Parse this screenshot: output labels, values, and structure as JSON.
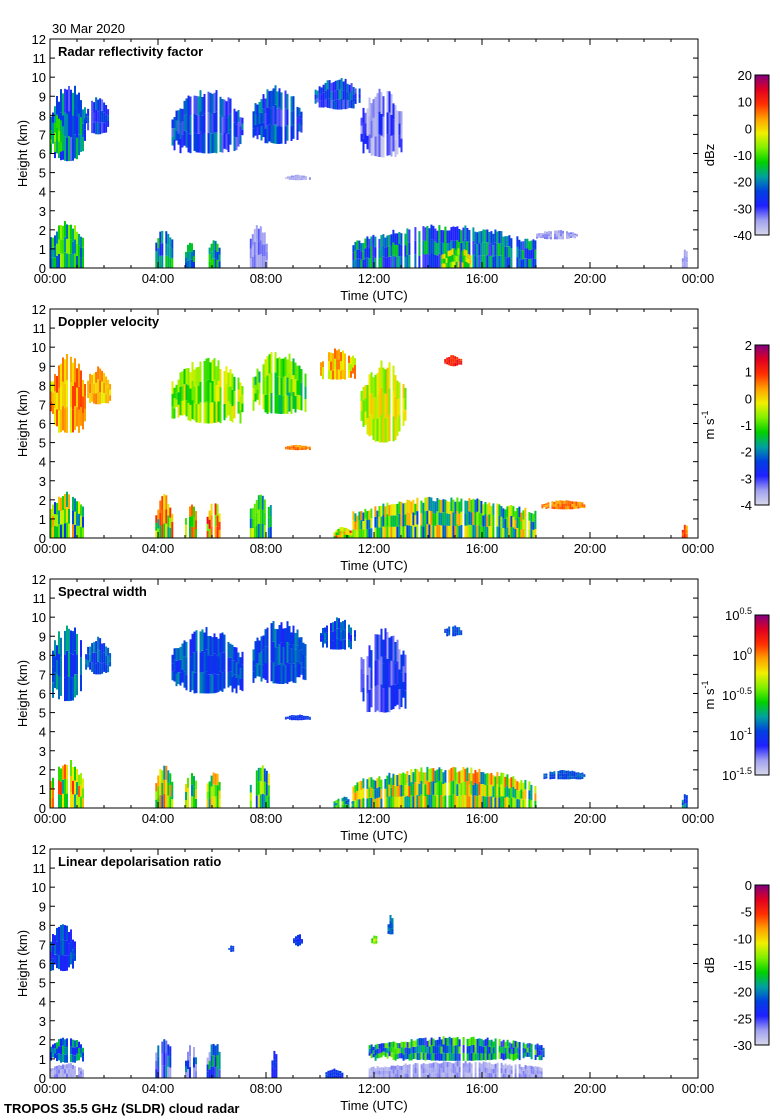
{
  "date": "30 Mar 2020",
  "footer": "TROPOS 35.5 GHz (SLDR) cloud radar",
  "colormap": [
    "#d8d8ea",
    "#a0a0f0",
    "#2020ff",
    "#0040e0",
    "#00a0a0",
    "#00d000",
    "#80f000",
    "#f0f000",
    "#ffa000",
    "#ff3000",
    "#e00020",
    "#800080"
  ],
  "chart_data": [
    {
      "type": "heatmap",
      "title": "Radar reflectivity factor",
      "xlabel": "Time (UTC)",
      "ylabel": "Height (km)",
      "xticks": [
        "00:00",
        "04:00",
        "08:00",
        "12:00",
        "16:00",
        "20:00",
        "00:00"
      ],
      "yticks": [
        "0",
        "1",
        "2",
        "3",
        "4",
        "5",
        "6",
        "7",
        "8",
        "9",
        "10",
        "11",
        "12"
      ],
      "xlim": [
        0,
        24
      ],
      "ylim": [
        0,
        12
      ],
      "colorbar": {
        "unit": "dBz",
        "unit_exp": "",
        "labels": [
          {
            "b": "20",
            "e": ""
          },
          {
            "b": "10",
            "e": ""
          },
          {
            "b": "0",
            "e": ""
          },
          {
            "b": "-10",
            "e": ""
          },
          {
            "b": "-20",
            "e": ""
          },
          {
            "b": "-30",
            "e": ""
          },
          {
            "b": "-40",
            "e": ""
          }
        ],
        "range": [
          -40,
          20
        ]
      },
      "echoes": [
        [
          0,
          1.3,
          5.6,
          9.8,
          0.28,
          0.15
        ],
        [
          0,
          0.5,
          6,
          8,
          0.45,
          0.1
        ],
        [
          1.3,
          2.2,
          7,
          9,
          0.22,
          0.1
        ],
        [
          4.5,
          7.1,
          6,
          9.5,
          0.24,
          0.12
        ],
        [
          7.5,
          9.3,
          6.5,
          9.6,
          0.25,
          0.12
        ],
        [
          9.8,
          11.5,
          8.3,
          10,
          0.24,
          0.12
        ],
        [
          11.5,
          13,
          5.8,
          9.5,
          0.12,
          0.1
        ],
        [
          8.7,
          9.6,
          4.6,
          4.9,
          0.08,
          0.03
        ],
        [
          0,
          1.2,
          0,
          2.5,
          0.42,
          0.15
        ],
        [
          3.9,
          4.5,
          0,
          2.3,
          0.35,
          0.15
        ],
        [
          5,
          5.3,
          0,
          1.5,
          0.35,
          0.12
        ],
        [
          5.8,
          6.3,
          0,
          1.5,
          0.38,
          0.12
        ],
        [
          7.4,
          8,
          0,
          2.4,
          0.1,
          0.05
        ],
        [
          11.2,
          18,
          0,
          2.3,
          0.3,
          0.15
        ],
        [
          14.5,
          15.6,
          0,
          1.1,
          0.55,
          0.15
        ],
        [
          18,
          19.5,
          1.5,
          2,
          0.08,
          0.04
        ],
        [
          23.4,
          23.6,
          0,
          1,
          0.08,
          0.03
        ]
      ]
    },
    {
      "type": "heatmap",
      "title": "Doppler velocity",
      "xlabel": "Time (UTC)",
      "ylabel": "Height (km)",
      "xticks": [
        "00:00",
        "04:00",
        "08:00",
        "12:00",
        "16:00",
        "20:00",
        "00:00"
      ],
      "yticks": [
        "0",
        "1",
        "2",
        "3",
        "4",
        "5",
        "6",
        "7",
        "8",
        "9",
        "10",
        "11",
        "12"
      ],
      "xlim": [
        0,
        24
      ],
      "ylim": [
        0,
        12
      ],
      "colorbar": {
        "unit": "m s",
        "unit_exp": "-1",
        "labels": [
          {
            "b": "2",
            "e": ""
          },
          {
            "b": "1",
            "e": ""
          },
          {
            "b": "0",
            "e": ""
          },
          {
            "b": "-1",
            "e": ""
          },
          {
            "b": "-2",
            "e": ""
          },
          {
            "b": "-3",
            "e": ""
          },
          {
            "b": "-4",
            "e": ""
          }
        ],
        "range": [
          -4,
          2
        ]
      },
      "echoes": [
        [
          0,
          1.3,
          5.5,
          9.8,
          0.72,
          0.1
        ],
        [
          1.3,
          2.2,
          7,
          9,
          0.7,
          0.08
        ],
        [
          4.5,
          7.1,
          6,
          9.5,
          0.55,
          0.12
        ],
        [
          7.5,
          9.5,
          6.5,
          9.9,
          0.5,
          0.12
        ],
        [
          10,
          11.3,
          8.3,
          10,
          0.68,
          0.1
        ],
        [
          11.5,
          13.2,
          5,
          9.5,
          0.6,
          0.1
        ],
        [
          14.6,
          15.2,
          9,
          9.6,
          0.85,
          0.05
        ],
        [
          8.7,
          9.6,
          4.6,
          4.9,
          0.75,
          0.05
        ],
        [
          0,
          1.2,
          0,
          2.6,
          0.5,
          0.25
        ],
        [
          3.9,
          4.5,
          0,
          2.3,
          0.6,
          0.25
        ],
        [
          5,
          5.4,
          0,
          2,
          0.6,
          0.2
        ],
        [
          5.8,
          6.3,
          0,
          2,
          0.65,
          0.25
        ],
        [
          7.4,
          8.2,
          0,
          2.4,
          0.45,
          0.2
        ],
        [
          10.5,
          11.2,
          0,
          0.6,
          0.65,
          0.2
        ],
        [
          11.2,
          18,
          0,
          2.2,
          0.5,
          0.25
        ],
        [
          18.2,
          19.8,
          1.5,
          2,
          0.75,
          0.05
        ],
        [
          23.4,
          23.6,
          0,
          0.8,
          0.75,
          0.1
        ]
      ]
    },
    {
      "type": "heatmap",
      "title": "Spectral width",
      "xlabel": "Time (UTC)",
      "ylabel": "Height (km)",
      "xticks": [
        "00:00",
        "04:00",
        "08:00",
        "12:00",
        "16:00",
        "20:00",
        "00:00"
      ],
      "yticks": [
        "0",
        "1",
        "2",
        "3",
        "4",
        "5",
        "6",
        "7",
        "8",
        "9",
        "10",
        "11",
        "12"
      ],
      "xlim": [
        0,
        24
      ],
      "ylim": [
        0,
        12
      ],
      "colorbar": {
        "unit": "m s",
        "unit_exp": "-1",
        "labels": [
          {
            "b": "10",
            "e": "0.5"
          },
          {
            "b": "10",
            "e": "0"
          },
          {
            "b": "10",
            "e": "-0.5"
          },
          {
            "b": "10",
            "e": "-1"
          },
          {
            "b": "10",
            "e": "-1.5"
          }
        ],
        "range": [
          -1.5,
          0.5
        ]
      },
      "echoes": [
        [
          0,
          1.3,
          5.6,
          9.8,
          0.3,
          0.1
        ],
        [
          1.3,
          2.2,
          7,
          9,
          0.28,
          0.08
        ],
        [
          4.5,
          7.1,
          6,
          9.5,
          0.27,
          0.08
        ],
        [
          7.5,
          9.5,
          6.5,
          9.9,
          0.27,
          0.08
        ],
        [
          10,
          11.3,
          8.3,
          10,
          0.26,
          0.08
        ],
        [
          11.5,
          13.2,
          5,
          9.5,
          0.18,
          0.1
        ],
        [
          14.6,
          15.2,
          9,
          9.6,
          0.27,
          0.05
        ],
        [
          8.7,
          9.6,
          4.6,
          4.9,
          0.25,
          0.05
        ],
        [
          0,
          1.2,
          0,
          2.6,
          0.6,
          0.25
        ],
        [
          3.9,
          4.5,
          0,
          2.3,
          0.55,
          0.25
        ],
        [
          5,
          5.4,
          0,
          2,
          0.5,
          0.2
        ],
        [
          5.8,
          6.3,
          0,
          2,
          0.5,
          0.25
        ],
        [
          7.4,
          8.2,
          0,
          2.4,
          0.45,
          0.2
        ],
        [
          10.5,
          11.2,
          0,
          0.6,
          0.4,
          0.15
        ],
        [
          11.2,
          18,
          0,
          2.2,
          0.55,
          0.25
        ],
        [
          18.2,
          19.8,
          1.5,
          2,
          0.28,
          0.05
        ],
        [
          23.4,
          23.6,
          0,
          0.8,
          0.3,
          0.1
        ]
      ]
    },
    {
      "type": "heatmap",
      "title": "Linear depolarisation ratio",
      "xlabel": "Time (UTC)",
      "ylabel": "Height (km)",
      "xticks": [
        "00:00",
        "04:00",
        "08:00",
        "12:00",
        "16:00",
        "20:00",
        "00:00"
      ],
      "yticks": [
        "0",
        "1",
        "2",
        "3",
        "4",
        "5",
        "6",
        "7",
        "8",
        "9",
        "10",
        "11",
        "12"
      ],
      "xlim": [
        0,
        24
      ],
      "ylim": [
        0,
        12
      ],
      "colorbar": {
        "unit": "dB",
        "unit_exp": "",
        "labels": [
          {
            "b": "0",
            "e": ""
          },
          {
            "b": "-5",
            "e": ""
          },
          {
            "b": "-10",
            "e": ""
          },
          {
            "b": "-15",
            "e": ""
          },
          {
            "b": "-20",
            "e": ""
          },
          {
            "b": "-25",
            "e": ""
          },
          {
            "b": "-30",
            "e": ""
          }
        ],
        "range": [
          -30,
          0
        ]
      },
      "echoes": [
        [
          0,
          0.9,
          5.6,
          8.3,
          0.25,
          0.08
        ],
        [
          6.6,
          6.8,
          6.6,
          7,
          0.27,
          0.03
        ],
        [
          9,
          9.3,
          6.9,
          7.6,
          0.25,
          0.05
        ],
        [
          11.9,
          12.1,
          7,
          7.5,
          0.55,
          0.1
        ],
        [
          12.5,
          12.7,
          7.5,
          8.6,
          0.3,
          0.05
        ],
        [
          0,
          1.2,
          0,
          0.8,
          0.08,
          0.04
        ],
        [
          0,
          1.2,
          0.8,
          2.2,
          0.3,
          0.12
        ],
        [
          3.9,
          4.5,
          0,
          2.2,
          0.22,
          0.15
        ],
        [
          5,
          5.4,
          0,
          1.8,
          0.2,
          0.15
        ],
        [
          5.8,
          6.3,
          0,
          2,
          0.25,
          0.2
        ],
        [
          8.2,
          8.4,
          0,
          1.5,
          0.2,
          0.05
        ],
        [
          10.2,
          10.8,
          0,
          0.5,
          0.25,
          0.05
        ],
        [
          11.8,
          18.3,
          0,
          0.9,
          0.08,
          0.04
        ],
        [
          11.8,
          18.3,
          0.9,
          2.2,
          0.35,
          0.2
        ]
      ]
    }
  ]
}
